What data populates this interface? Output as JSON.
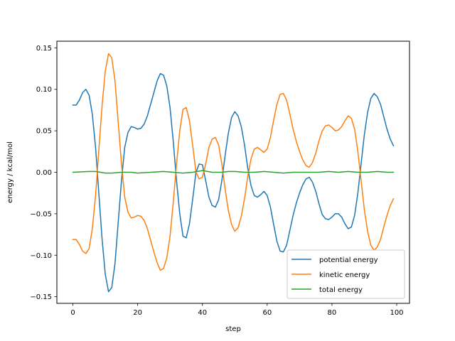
{
  "chart_data": {
    "type": "line",
    "title": "",
    "xlabel": "step",
    "ylabel": "energy / kcal/mol",
    "xlim": [
      -4.95,
      103.95
    ],
    "ylim": [
      -0.158,
      0.158
    ],
    "xticks": [
      0,
      20,
      40,
      60,
      80,
      100
    ],
    "yticks": [
      -0.15,
      -0.1,
      -0.05,
      0.0,
      0.05,
      0.1,
      0.15
    ],
    "xtick_labels": [
      "0",
      "20",
      "40",
      "60",
      "80",
      "100"
    ],
    "ytick_labels": [
      "−0.15",
      "−0.10",
      "−0.05",
      "0.00",
      "0.05",
      "0.10",
      "0.15"
    ],
    "grid": false,
    "legend_position": "lower-right",
    "series": [
      {
        "name": "potential energy",
        "color": "#1f77b4",
        "points": [
          [
            0,
            0.081
          ],
          [
            1,
            0.081
          ],
          [
            2,
            0.087
          ],
          [
            3,
            0.096
          ],
          [
            4,
            0.1
          ],
          [
            5,
            0.093
          ],
          [
            6,
            0.07
          ],
          [
            7,
            0.03
          ],
          [
            8,
            -0.025
          ],
          [
            9,
            -0.08
          ],
          [
            10,
            -0.123
          ],
          [
            11,
            -0.144
          ],
          [
            12,
            -0.139
          ],
          [
            13,
            -0.11
          ],
          [
            14,
            -0.06
          ],
          [
            15,
            -0.01
          ],
          [
            16,
            0.03
          ],
          [
            17,
            0.048
          ],
          [
            18,
            0.055
          ],
          [
            19,
            0.054
          ],
          [
            20,
            0.052
          ],
          [
            21,
            0.053
          ],
          [
            22,
            0.058
          ],
          [
            23,
            0.068
          ],
          [
            24,
            0.082
          ],
          [
            25,
            0.096
          ],
          [
            26,
            0.11
          ],
          [
            27,
            0.119
          ],
          [
            28,
            0.117
          ],
          [
            29,
            0.104
          ],
          [
            30,
            0.078
          ],
          [
            31,
            0.037
          ],
          [
            32,
            -0.01
          ],
          [
            33,
            -0.05
          ],
          [
            34,
            -0.077
          ],
          [
            35,
            -0.079
          ],
          [
            36,
            -0.062
          ],
          [
            37,
            -0.032
          ],
          [
            38,
            0.0
          ],
          [
            39,
            0.01
          ],
          [
            40,
            0.009
          ],
          [
            41,
            -0.01
          ],
          [
            42,
            -0.03
          ],
          [
            43,
            -0.04
          ],
          [
            44,
            -0.042
          ],
          [
            45,
            -0.033
          ],
          [
            46,
            -0.01
          ],
          [
            47,
            0.02
          ],
          [
            48,
            0.047
          ],
          [
            49,
            0.066
          ],
          [
            50,
            0.073
          ],
          [
            51,
            0.068
          ],
          [
            52,
            0.055
          ],
          [
            53,
            0.033
          ],
          [
            54,
            0.005
          ],
          [
            55,
            -0.016
          ],
          [
            56,
            -0.028
          ],
          [
            57,
            -0.03
          ],
          [
            58,
            -0.027
          ],
          [
            59,
            -0.023
          ],
          [
            60,
            -0.028
          ],
          [
            61,
            -0.042
          ],
          [
            62,
            -0.063
          ],
          [
            63,
            -0.083
          ],
          [
            64,
            -0.095
          ],
          [
            65,
            -0.096
          ],
          [
            66,
            -0.088
          ],
          [
            67,
            -0.07
          ],
          [
            68,
            -0.052
          ],
          [
            69,
            -0.037
          ],
          [
            70,
            -0.025
          ],
          [
            71,
            -0.015
          ],
          [
            72,
            -0.008
          ],
          [
            73,
            -0.006
          ],
          [
            74,
            -0.012
          ],
          [
            75,
            -0.023
          ],
          [
            76,
            -0.038
          ],
          [
            77,
            -0.051
          ],
          [
            78,
            -0.056
          ],
          [
            79,
            -0.057
          ],
          [
            80,
            -0.054
          ],
          [
            81,
            -0.05
          ],
          [
            82,
            -0.05
          ],
          [
            83,
            -0.054
          ],
          [
            84,
            -0.062
          ],
          [
            85,
            -0.068
          ],
          [
            86,
            -0.066
          ],
          [
            87,
            -0.052
          ],
          [
            88,
            -0.025
          ],
          [
            89,
            0.01
          ],
          [
            90,
            0.045
          ],
          [
            91,
            0.072
          ],
          [
            92,
            0.089
          ],
          [
            93,
            0.095
          ],
          [
            94,
            0.091
          ],
          [
            95,
            0.082
          ],
          [
            96,
            0.067
          ],
          [
            97,
            0.052
          ],
          [
            98,
            0.04
          ],
          [
            99,
            0.032
          ]
        ]
      },
      {
        "name": "kinetic energy",
        "color": "#ff7f0e",
        "points": [
          [
            0,
            -0.081
          ],
          [
            1,
            -0.081
          ],
          [
            2,
            -0.087
          ],
          [
            3,
            -0.095
          ],
          [
            4,
            -0.098
          ],
          [
            5,
            -0.092
          ],
          [
            6,
            -0.068
          ],
          [
            7,
            -0.028
          ],
          [
            8,
            0.026
          ],
          [
            9,
            0.08
          ],
          [
            10,
            0.122
          ],
          [
            11,
            0.143
          ],
          [
            12,
            0.138
          ],
          [
            13,
            0.11
          ],
          [
            14,
            0.06
          ],
          [
            15,
            0.01
          ],
          [
            16,
            -0.03
          ],
          [
            17,
            -0.048
          ],
          [
            18,
            -0.055
          ],
          [
            19,
            -0.054
          ],
          [
            20,
            -0.052
          ],
          [
            21,
            -0.053
          ],
          [
            22,
            -0.058
          ],
          [
            23,
            -0.068
          ],
          [
            24,
            -0.082
          ],
          [
            25,
            -0.096
          ],
          [
            26,
            -0.109
          ],
          [
            27,
            -0.118
          ],
          [
            28,
            -0.116
          ],
          [
            29,
            -0.103
          ],
          [
            30,
            -0.077
          ],
          [
            31,
            -0.036
          ],
          [
            32,
            0.01
          ],
          [
            33,
            0.05
          ],
          [
            34,
            0.076
          ],
          [
            35,
            0.078
          ],
          [
            36,
            0.062
          ],
          [
            37,
            0.032
          ],
          [
            38,
            0.0
          ],
          [
            39,
            -0.008
          ],
          [
            40,
            -0.006
          ],
          [
            41,
            0.01
          ],
          [
            42,
            0.03
          ],
          [
            43,
            0.04
          ],
          [
            44,
            0.042
          ],
          [
            45,
            0.033
          ],
          [
            46,
            0.01
          ],
          [
            47,
            -0.02
          ],
          [
            48,
            -0.046
          ],
          [
            49,
            -0.063
          ],
          [
            50,
            -0.071
          ],
          [
            51,
            -0.067
          ],
          [
            52,
            -0.053
          ],
          [
            53,
            -0.032
          ],
          [
            54,
            -0.005
          ],
          [
            55,
            0.016
          ],
          [
            56,
            0.028
          ],
          [
            57,
            0.03
          ],
          [
            58,
            0.027
          ],
          [
            59,
            0.024
          ],
          [
            60,
            0.028
          ],
          [
            61,
            0.042
          ],
          [
            62,
            0.063
          ],
          [
            63,
            0.082
          ],
          [
            64,
            0.094
          ],
          [
            65,
            0.095
          ],
          [
            66,
            0.087
          ],
          [
            67,
            0.07
          ],
          [
            68,
            0.052
          ],
          [
            69,
            0.037
          ],
          [
            70,
            0.025
          ],
          [
            71,
            0.015
          ],
          [
            72,
            0.008
          ],
          [
            73,
            0.006
          ],
          [
            74,
            0.012
          ],
          [
            75,
            0.023
          ],
          [
            76,
            0.038
          ],
          [
            77,
            0.05
          ],
          [
            78,
            0.056
          ],
          [
            79,
            0.057
          ],
          [
            80,
            0.054
          ],
          [
            81,
            0.05
          ],
          [
            82,
            0.051
          ],
          [
            83,
            0.055
          ],
          [
            84,
            0.062
          ],
          [
            85,
            0.068
          ],
          [
            86,
            0.065
          ],
          [
            87,
            0.052
          ],
          [
            88,
            0.025
          ],
          [
            89,
            -0.01
          ],
          [
            90,
            -0.045
          ],
          [
            91,
            -0.071
          ],
          [
            92,
            -0.088
          ],
          [
            93,
            -0.094
          ],
          [
            94,
            -0.09
          ],
          [
            95,
            -0.081
          ],
          [
            96,
            -0.066
          ],
          [
            97,
            -0.052
          ],
          [
            98,
            -0.04
          ],
          [
            99,
            -0.032
          ]
        ]
      },
      {
        "name": "total energy",
        "color": "#2ca02c",
        "points": [
          [
            0,
            0.0
          ],
          [
            5,
            0.001
          ],
          [
            7,
            0.001
          ],
          [
            10,
            -0.001
          ],
          [
            12,
            -0.001
          ],
          [
            15,
            0.0
          ],
          [
            18,
            0.0
          ],
          [
            20,
            -0.001
          ],
          [
            24,
            0.0
          ],
          [
            28,
            0.001
          ],
          [
            31,
            0.0
          ],
          [
            34,
            -0.001
          ],
          [
            37,
            0.0
          ],
          [
            40,
            0.002
          ],
          [
            43,
            0.0
          ],
          [
            46,
            0.0
          ],
          [
            48,
            0.001
          ],
          [
            50,
            0.001
          ],
          [
            53,
            0.0
          ],
          [
            56,
            0.0
          ],
          [
            59,
            0.001
          ],
          [
            62,
            0.0
          ],
          [
            65,
            -0.001
          ],
          [
            68,
            0.0
          ],
          [
            72,
            0.0
          ],
          [
            76,
            0.0
          ],
          [
            79,
            0.001
          ],
          [
            82,
            0.0
          ],
          [
            85,
            0.001
          ],
          [
            88,
            0.0
          ],
          [
            91,
            0.0
          ],
          [
            94,
            0.001
          ],
          [
            97,
            0.0
          ],
          [
            99,
            0.0
          ]
        ]
      }
    ]
  }
}
